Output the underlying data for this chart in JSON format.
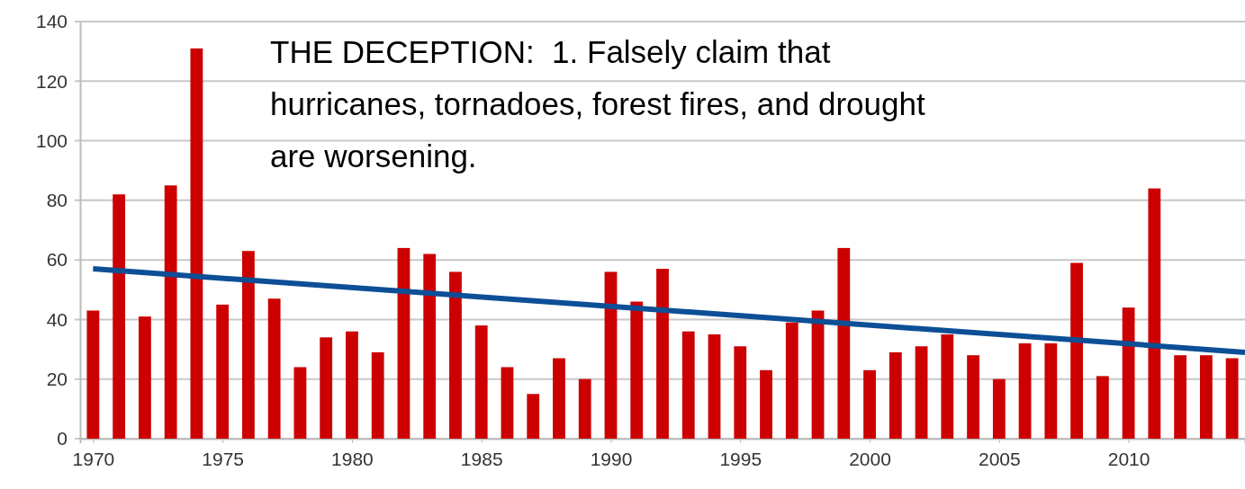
{
  "chart_data": {
    "type": "bar",
    "x": [
      1970,
      1971,
      1972,
      1973,
      1974,
      1975,
      1976,
      1977,
      1978,
      1979,
      1980,
      1981,
      1982,
      1983,
      1984,
      1985,
      1986,
      1987,
      1988,
      1989,
      1990,
      1991,
      1992,
      1993,
      1994,
      1995,
      1996,
      1997,
      1998,
      1999,
      2000,
      2001,
      2002,
      2003,
      2004,
      2005,
      2006,
      2007,
      2008,
      2009,
      2010,
      2011,
      2012,
      2013,
      2014
    ],
    "series": [
      {
        "color": "#cc0000",
        "values": [
          43,
          82,
          41,
          85,
          131,
          45,
          63,
          47,
          24,
          34,
          36,
          29,
          64,
          62,
          56,
          38,
          24,
          15,
          27,
          20,
          56,
          46,
          57,
          36,
          35,
          31,
          23,
          39,
          43,
          64,
          23,
          29,
          31,
          35,
          28,
          20,
          32,
          32,
          59,
          21,
          44,
          84,
          28,
          28,
          27
        ]
      },
      {
        "type": "line",
        "color": "#0d4f96",
        "x": [
          1970,
          2014.5
        ],
        "values": [
          57,
          29
        ]
      }
    ],
    "xlim": [
      1969.5,
      2014.5
    ],
    "xticks": [
      1970,
      1975,
      1980,
      1985,
      1990,
      1995,
      2000,
      2005,
      2010
    ],
    "ylim": [
      0,
      140
    ],
    "yticks": [
      0,
      20,
      40,
      60,
      80,
      100,
      120,
      140
    ],
    "grid": "y",
    "line_style": "solid",
    "annotations": [
      "THE DECEPTION:  1. Falsely claim that hurricanes, tornadoes, forest fires, and drought are worsening."
    ]
  }
}
